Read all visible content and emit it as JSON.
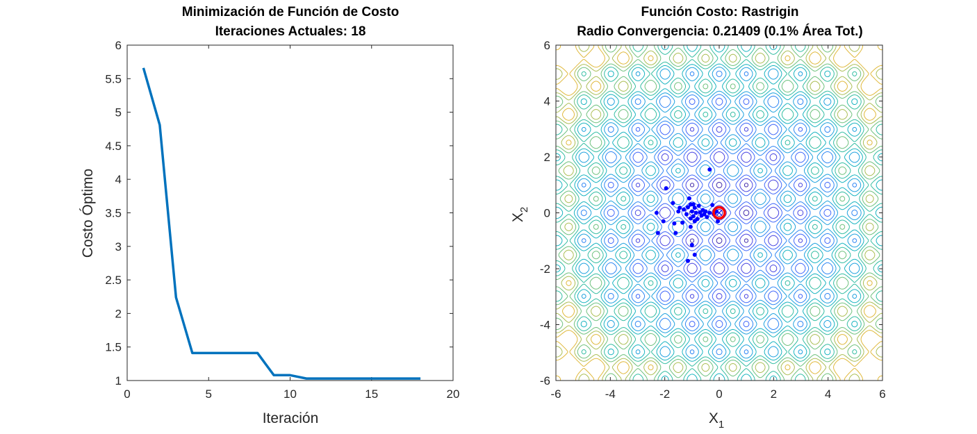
{
  "chart_data": [
    {
      "type": "line",
      "title": "Minimización de Función de Costo",
      "subtitle": "Iteraciones Actuales: 18",
      "xlabel": "Iteración",
      "ylabel": "Costo Óptimo",
      "xlim": [
        0,
        20
      ],
      "ylim": [
        1,
        6
      ],
      "xticks": [
        0,
        5,
        10,
        15,
        20
      ],
      "yticks": [
        1,
        1.5,
        2,
        2.5,
        3,
        3.5,
        4,
        4.5,
        5,
        5.5,
        6
      ],
      "grid": false,
      "line_color": "#0072BD",
      "series": [
        {
          "x": [
            1,
            2,
            3,
            4,
            5,
            6,
            7,
            8,
            9,
            10,
            11,
            12,
            13,
            14,
            15,
            16,
            17,
            18
          ],
          "y": [
            5.66,
            4.81,
            2.24,
            1.41,
            1.41,
            1.41,
            1.41,
            1.41,
            1.08,
            1.08,
            1.03,
            1.03,
            1.03,
            1.03,
            1.03,
            1.03,
            1.03,
            1.03
          ]
        }
      ]
    },
    {
      "type": "scatter",
      "title": "Función Costo: Rastrigin",
      "subtitle": "Radio Convergencia: 0.21409 (0.1% Área Tot.)",
      "xlabel": "X",
      "xlabel_sub": "1",
      "ylabel": "X",
      "ylabel_sub": "2",
      "xlim": [
        -6,
        6
      ],
      "ylim": [
        -6,
        6
      ],
      "xticks": [
        -6,
        -4,
        -2,
        0,
        2,
        4,
        6
      ],
      "yticks": [
        -6,
        -4,
        -2,
        0,
        2,
        4,
        6
      ],
      "background": "contour of Rastrigin function",
      "point_color": "#0000FF",
      "marker_color": "#FF0000",
      "points": [
        {
          "x": -0.35,
          "y": 1.55
        },
        {
          "x": -1.95,
          "y": 0.88
        },
        {
          "x": -1.1,
          "y": 0.52
        },
        {
          "x": -1.7,
          "y": 0.35
        },
        {
          "x": -1.45,
          "y": 0.18
        },
        {
          "x": -1.5,
          "y": 0.05
        },
        {
          "x": -1.3,
          "y": 0.12
        },
        {
          "x": -1.2,
          "y": -0.05
        },
        {
          "x": -1.15,
          "y": 0.2
        },
        {
          "x": -1.05,
          "y": 0.3
        },
        {
          "x": -1.0,
          "y": 0.05
        },
        {
          "x": -0.95,
          "y": -0.12
        },
        {
          "x": -0.9,
          "y": 0.18
        },
        {
          "x": -0.85,
          "y": 0.0
        },
        {
          "x": -0.8,
          "y": -0.22
        },
        {
          "x": -0.75,
          "y": 0.25
        },
        {
          "x": -0.7,
          "y": 0.02
        },
        {
          "x": -0.65,
          "y": -0.1
        },
        {
          "x": -0.6,
          "y": 0.1
        },
        {
          "x": -0.55,
          "y": -0.05
        },
        {
          "x": -0.5,
          "y": 0.05
        },
        {
          "x": -0.45,
          "y": -0.15
        },
        {
          "x": -0.35,
          "y": 0.0
        },
        {
          "x": -0.25,
          "y": 0.28
        },
        {
          "x": -0.2,
          "y": -0.05
        },
        {
          "x": -0.1,
          "y": 0.05
        },
        {
          "x": -0.05,
          "y": -0.3
        },
        {
          "x": -0.9,
          "y": -0.3
        },
        {
          "x": -1.05,
          "y": -0.2
        },
        {
          "x": -2.3,
          "y": 0.0
        },
        {
          "x": -2.05,
          "y": -0.3
        },
        {
          "x": -1.65,
          "y": -0.38
        },
        {
          "x": -1.35,
          "y": -0.35
        },
        {
          "x": -2.25,
          "y": -0.72
        },
        {
          "x": -1.6,
          "y": -0.72
        },
        {
          "x": -1.05,
          "y": -0.5
        },
        {
          "x": -1.0,
          "y": -1.15
        },
        {
          "x": -0.9,
          "y": -1.5
        },
        {
          "x": -1.15,
          "y": -1.72
        },
        {
          "x": -0.95,
          "y": 0.3
        }
      ],
      "best": {
        "x": 0.0,
        "y": 0.0
      }
    }
  ]
}
